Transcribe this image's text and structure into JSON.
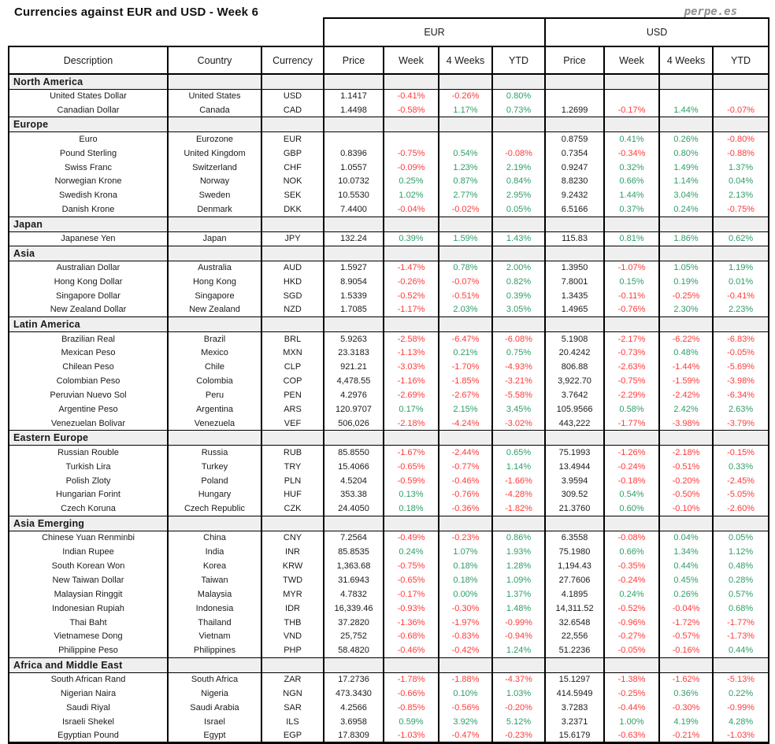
{
  "logo": "perpe.es",
  "colors": {
    "positive": "#2e9e68",
    "negative": "#ff3b3b",
    "section_bg": "#efefef",
    "border": "#000000"
  },
  "chart_data": {
    "type": "table",
    "title": "Currencies against EUR and USD - Week 6",
    "groups": [
      "EUR",
      "USD"
    ],
    "columns": [
      "Description",
      "Country",
      "Currency",
      "Price",
      "Week",
      "4 Weeks",
      "YTD",
      "Price",
      "Week",
      "4 Weeks",
      "YTD"
    ],
    "sections": [
      {
        "name": "North America",
        "rows": [
          {
            "description": "United States Dollar",
            "country": "United States",
            "currency": "USD",
            "eur": [
              "1.1417",
              "-0.41%",
              "-0.26%",
              "0.80%"
            ],
            "usd": [
              "",
              "",
              "",
              ""
            ]
          },
          {
            "description": "Canadian Dollar",
            "country": "Canada",
            "currency": "CAD",
            "eur": [
              "1.4498",
              "-0.58%",
              "1.17%",
              "0.73%"
            ],
            "usd": [
              "1.2699",
              "-0.17%",
              "1.44%",
              "-0.07%"
            ]
          }
        ]
      },
      {
        "name": "Europe",
        "rows": [
          {
            "description": "Euro",
            "country": "Eurozone",
            "currency": "EUR",
            "eur": [
              "",
              "",
              "",
              ""
            ],
            "usd": [
              "0.8759",
              "0.41%",
              "0.26%",
              "-0.80%"
            ]
          },
          {
            "description": "Pound Sterling",
            "country": "United Kingdom",
            "currency": "GBP",
            "eur": [
              "0.8396",
              "-0.75%",
              "0.54%",
              "-0.08%"
            ],
            "usd": [
              "0.7354",
              "-0.34%",
              "0.80%",
              "-0.88%"
            ]
          },
          {
            "description": "Swiss Franc",
            "country": "Switzerland",
            "currency": "CHF",
            "eur": [
              "1.0557",
              "-0.09%",
              "1.23%",
              "2.19%"
            ],
            "usd": [
              "0.9247",
              "0.32%",
              "1.49%",
              "1.37%"
            ]
          },
          {
            "description": "Norwegian Krone",
            "country": "Norway",
            "currency": "NOK",
            "eur": [
              "10.0732",
              "0.25%",
              "0.87%",
              "0.84%"
            ],
            "usd": [
              "8.8230",
              "0.66%",
              "1.14%",
              "0.04%"
            ]
          },
          {
            "description": "Swedish Krona",
            "country": "Sweden",
            "currency": "SEK",
            "eur": [
              "10.5530",
              "1.02%",
              "2.77%",
              "2.95%"
            ],
            "usd": [
              "9.2432",
              "1.44%",
              "3.04%",
              "2.13%"
            ]
          },
          {
            "description": "Danish Krone",
            "country": "Denmark",
            "currency": "DKK",
            "eur": [
              "7.4400",
              "-0.04%",
              "-0.02%",
              "0.05%"
            ],
            "usd": [
              "6.5166",
              "0.37%",
              "0.24%",
              "-0.75%"
            ]
          }
        ]
      },
      {
        "name": "Japan",
        "rows": [
          {
            "description": "Japanese Yen",
            "country": "Japan",
            "currency": "JPY",
            "eur": [
              "132.24",
              "0.39%",
              "1.59%",
              "1.43%"
            ],
            "usd": [
              "115.83",
              "0.81%",
              "1.86%",
              "0.62%"
            ]
          }
        ]
      },
      {
        "name": "Asia",
        "rows": [
          {
            "description": "Australian Dollar",
            "country": "Australia",
            "currency": "AUD",
            "eur": [
              "1.5927",
              "-1.47%",
              "0.78%",
              "2.00%"
            ],
            "usd": [
              "1.3950",
              "-1.07%",
              "1.05%",
              "1.19%"
            ]
          },
          {
            "description": "Hong Kong Dollar",
            "country": "Hong Kong",
            "currency": "HKD",
            "eur": [
              "8.9054",
              "-0.26%",
              "-0.07%",
              "0.82%"
            ],
            "usd": [
              "7.8001",
              "0.15%",
              "0.19%",
              "0.01%"
            ]
          },
          {
            "description": "Singapore Dollar",
            "country": "Singapore",
            "currency": "SGD",
            "eur": [
              "1.5339",
              "-0.52%",
              "-0.51%",
              "0.39%"
            ],
            "usd": [
              "1.3435",
              "-0.11%",
              "-0.25%",
              "-0.41%"
            ]
          },
          {
            "description": "New Zealand Dollar",
            "country": "New Zealand",
            "currency": "NZD",
            "eur": [
              "1.7085",
              "-1.17%",
              "2.03%",
              "3.05%"
            ],
            "usd": [
              "1.4965",
              "-0.76%",
              "2.30%",
              "2.23%"
            ]
          }
        ]
      },
      {
        "name": "Latin America",
        "rows": [
          {
            "description": "Brazilian Real",
            "country": "Brazil",
            "currency": "BRL",
            "eur": [
              "5.9263",
              "-2.58%",
              "-6.47%",
              "-6.08%"
            ],
            "usd": [
              "5.1908",
              "-2.17%",
              "-6.22%",
              "-6.83%"
            ]
          },
          {
            "description": "Mexican Peso",
            "country": "Mexico",
            "currency": "MXN",
            "eur": [
              "23.3183",
              "-1.13%",
              "0.21%",
              "0.75%"
            ],
            "usd": [
              "20.4242",
              "-0.73%",
              "0.48%",
              "-0.05%"
            ]
          },
          {
            "description": "Chilean Peso",
            "country": "Chile",
            "currency": "CLP",
            "eur": [
              "921.21",
              "-3.03%",
              "-1.70%",
              "-4.93%"
            ],
            "usd": [
              "806.88",
              "-2.63%",
              "-1.44%",
              "-5.69%"
            ]
          },
          {
            "description": "Colombian Peso",
            "country": "Colombia",
            "currency": "COP",
            "eur": [
              "4,478.55",
              "-1.16%",
              "-1.85%",
              "-3.21%"
            ],
            "usd": [
              "3,922.70",
              "-0.75%",
              "-1.59%",
              "-3.98%"
            ]
          },
          {
            "description": "Peruvian Nuevo Sol",
            "country": "Peru",
            "currency": "PEN",
            "eur": [
              "4.2976",
              "-2.69%",
              "-2.67%",
              "-5.58%"
            ],
            "usd": [
              "3.7642",
              "-2.29%",
              "-2.42%",
              "-6.34%"
            ]
          },
          {
            "description": "Argentine Peso",
            "country": "Argentina",
            "currency": "ARS",
            "eur": [
              "120.9707",
              "0.17%",
              "2.15%",
              "3.45%"
            ],
            "usd": [
              "105.9566",
              "0.58%",
              "2.42%",
              "2.63%"
            ]
          },
          {
            "description": "Venezuelan Bolivar",
            "country": "Venezuela",
            "currency": "VEF",
            "eur": [
              "506,026",
              "-2.18%",
              "-4.24%",
              "-3.02%"
            ],
            "usd": [
              "443,222",
              "-1.77%",
              "-3.98%",
              "-3.79%"
            ]
          }
        ]
      },
      {
        "name": "Eastern Europe",
        "rows": [
          {
            "description": "Russian Rouble",
            "country": "Russia",
            "currency": "RUB",
            "eur": [
              "85.8550",
              "-1.67%",
              "-2.44%",
              "0.65%"
            ],
            "usd": [
              "75.1993",
              "-1.26%",
              "-2.18%",
              "-0.15%"
            ]
          },
          {
            "description": "Turkish Lira",
            "country": "Turkey",
            "currency": "TRY",
            "eur": [
              "15.4066",
              "-0.65%",
              "-0.77%",
              "1.14%"
            ],
            "usd": [
              "13.4944",
              "-0.24%",
              "-0.51%",
              "0.33%"
            ]
          },
          {
            "description": "Polish Zloty",
            "country": "Poland",
            "currency": "PLN",
            "eur": [
              "4.5204",
              "-0.59%",
              "-0.46%",
              "-1.66%"
            ],
            "usd": [
              "3.9594",
              "-0.18%",
              "-0.20%",
              "-2.45%"
            ]
          },
          {
            "description": "Hungarian Forint",
            "country": "Hungary",
            "currency": "HUF",
            "eur": [
              "353.38",
              "0.13%",
              "-0.76%",
              "-4.28%"
            ],
            "usd": [
              "309.52",
              "0.54%",
              "-0.50%",
              "-5.05%"
            ]
          },
          {
            "description": "Czech Koruna",
            "country": "Czech Republic",
            "currency": "CZK",
            "eur": [
              "24.4050",
              "0.18%",
              "-0.36%",
              "-1.82%"
            ],
            "usd": [
              "21.3760",
              "0.60%",
              "-0.10%",
              "-2.60%"
            ]
          }
        ]
      },
      {
        "name": "Asia Emerging",
        "rows": [
          {
            "description": "Chinese Yuan Renminbi",
            "country": "China",
            "currency": "CNY",
            "eur": [
              "7.2564",
              "-0.49%",
              "-0.23%",
              "0.86%"
            ],
            "usd": [
              "6.3558",
              "-0.08%",
              "0.04%",
              "0.05%"
            ]
          },
          {
            "description": "Indian Rupee",
            "country": "India",
            "currency": "INR",
            "eur": [
              "85.8535",
              "0.24%",
              "1.07%",
              "1.93%"
            ],
            "usd": [
              "75.1980",
              "0.66%",
              "1.34%",
              "1.12%"
            ]
          },
          {
            "description": "South Korean Won",
            "country": "Korea",
            "currency": "KRW",
            "eur": [
              "1,363.68",
              "-0.75%",
              "0.18%",
              "1.28%"
            ],
            "usd": [
              "1,194.43",
              "-0.35%",
              "0.44%",
              "0.48%"
            ]
          },
          {
            "description": "New Taiwan Dollar",
            "country": "Taiwan",
            "currency": "TWD",
            "eur": [
              "31.6943",
              "-0.65%",
              "0.18%",
              "1.09%"
            ],
            "usd": [
              "27.7606",
              "-0.24%",
              "0.45%",
              "0.28%"
            ]
          },
          {
            "description": "Malaysian Ringgit",
            "country": "Malaysia",
            "currency": "MYR",
            "eur": [
              "4.7832",
              "-0.17%",
              "0.00%",
              "1.37%"
            ],
            "usd": [
              "4.1895",
              "0.24%",
              "0.26%",
              "0.57%"
            ]
          },
          {
            "description": "Indonesian Rupiah",
            "country": "Indonesia",
            "currency": "IDR",
            "eur": [
              "16,339.46",
              "-0.93%",
              "-0.30%",
              "1.48%"
            ],
            "usd": [
              "14,311.52",
              "-0.52%",
              "-0.04%",
              "0.68%"
            ]
          },
          {
            "description": "Thai Baht",
            "country": "Thailand",
            "currency": "THB",
            "eur": [
              "37.2820",
              "-1.36%",
              "-1.97%",
              "-0.99%"
            ],
            "usd": [
              "32.6548",
              "-0.96%",
              "-1.72%",
              "-1.77%"
            ]
          },
          {
            "description": "Vietnamese Dong",
            "country": "Vietnam",
            "currency": "VND",
            "eur": [
              "25,752",
              "-0.68%",
              "-0.83%",
              "-0.94%"
            ],
            "usd": [
              "22,556",
              "-0.27%",
              "-0.57%",
              "-1.73%"
            ]
          },
          {
            "description": "Philippine Peso",
            "country": "Philippines",
            "currency": "PHP",
            "eur": [
              "58.4820",
              "-0.46%",
              "-0.42%",
              "1.24%"
            ],
            "usd": [
              "51.2236",
              "-0.05%",
              "-0.16%",
              "0.44%"
            ]
          }
        ]
      },
      {
        "name": "Africa and Middle East",
        "rows": [
          {
            "description": "South African Rand",
            "country": "South Africa",
            "currency": "ZAR",
            "eur": [
              "17.2736",
              "-1.78%",
              "-1.88%",
              "-4.37%"
            ],
            "usd": [
              "15.1297",
              "-1.38%",
              "-1.62%",
              "-5.13%"
            ]
          },
          {
            "description": "Nigerian Naira",
            "country": "Nigeria",
            "currency": "NGN",
            "eur": [
              "473.3430",
              "-0.66%",
              "0.10%",
              "1.03%"
            ],
            "usd": [
              "414.5949",
              "-0.25%",
              "0.36%",
              "0.22%"
            ]
          },
          {
            "description": "Saudi Riyal",
            "country": "Saudi Arabia",
            "currency": "SAR",
            "eur": [
              "4.2566",
              "-0.85%",
              "-0.56%",
              "-0.20%"
            ],
            "usd": [
              "3.7283",
              "-0.44%",
              "-0.30%",
              "-0.99%"
            ]
          },
          {
            "description": "Israeli Shekel",
            "country": "Israel",
            "currency": "ILS",
            "eur": [
              "3.6958",
              "0.59%",
              "3.92%",
              "5.12%"
            ],
            "usd": [
              "3.2371",
              "1.00%",
              "4.19%",
              "4.28%"
            ]
          },
          {
            "description": "Egyptian Pound",
            "country": "Egypt",
            "currency": "EGP",
            "eur": [
              "17.8309",
              "-1.03%",
              "-0.47%",
              "-0.23%"
            ],
            "usd": [
              "15.6179",
              "-0.63%",
              "-0.21%",
              "-1.03%"
            ]
          }
        ]
      }
    ]
  }
}
